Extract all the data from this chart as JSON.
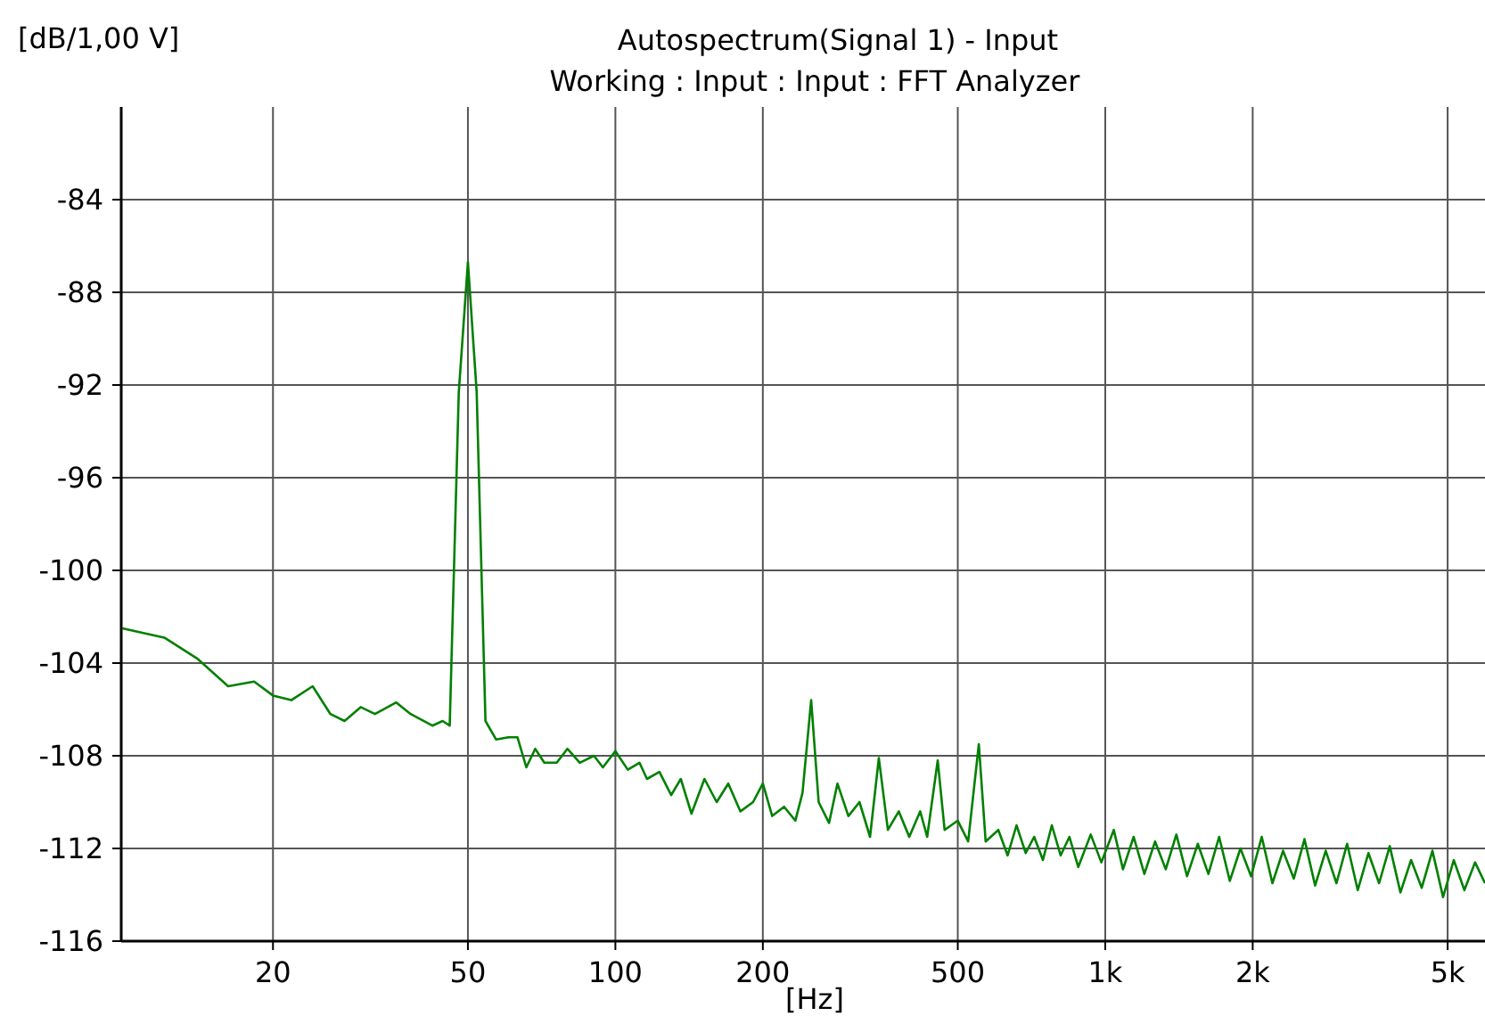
{
  "chart_data": {
    "type": "line",
    "title": "Autospectrum(Signal 1) - Input",
    "subtitle": "Working : Input : Input : FFT Analyzer",
    "xlabel": "[Hz]",
    "ylabel": "[dB/1,00 V]",
    "log": "x",
    "grid": true,
    "marker": "none",
    "line_style": "solid",
    "xlim": [
      9.8,
      5960
    ],
    "ylim": [
      -116,
      -80
    ],
    "xticks": [
      20,
      50,
      100,
      200,
      500,
      {
        "value": 1000,
        "label": "1k"
      },
      {
        "value": 2000,
        "label": "2k"
      },
      {
        "value": 5000,
        "label": "5k"
      }
    ],
    "yticks": [
      -84,
      -88,
      -92,
      -96,
      -100,
      -104,
      -108,
      -112,
      -116
    ],
    "x": [
      9.85,
      12,
      14,
      16.2,
      18.3,
      20,
      21.8,
      24.1,
      26.2,
      28,
      30.2,
      32.3,
      35.7,
      38.2,
      42.3,
      44.4,
      45.9,
      47.9,
      50,
      52.1,
      54.3,
      57.1,
      60.5,
      63.1,
      65.8,
      68.6,
      71.6,
      75.9,
      79.8,
      84.6,
      90.4,
      94.3,
      100,
      106,
      112,
      116,
      123,
      130,
      136,
      143,
      152,
      161,
      170,
      180,
      191,
      200,
      209,
      221,
      233,
      241,
      251,
      260,
      273,
      284,
      299,
      315,
      331,
      345,
      360,
      379,
      398,
      419,
      433,
      455,
      470,
      500,
      525,
      552,
      570,
      605,
      632,
      659,
      688,
      716,
      746,
      778,
      811,
      845,
      881,
      934,
      982,
      1041,
      1087,
      1143,
      1202,
      1264,
      1329,
      1397,
      1469,
      1545,
      1624,
      1708,
      1796,
      1888,
      1985,
      2087,
      2194,
      2307,
      2426,
      2551,
      2682,
      2819,
      2965,
      3117,
      3277,
      3446,
      3623,
      3809,
      4005,
      4211,
      4427,
      4655,
      4894,
      5146,
      5410,
      5688,
      5960
    ],
    "series": [
      {
        "color": "#008000",
        "values": [
          -102.5,
          -102.9,
          -103.8,
          -105.0,
          -104.8,
          -105.4,
          -105.6,
          -105.0,
          -106.2,
          -106.5,
          -105.9,
          -106.2,
          -105.7,
          -106.2,
          -106.7,
          -106.5,
          -106.7,
          -92.3,
          -86.7,
          -92.3,
          -106.5,
          -107.3,
          -107.2,
          -107.2,
          -108.5,
          -107.7,
          -108.3,
          -108.3,
          -107.7,
          -108.3,
          -108.0,
          -108.5,
          -107.8,
          -108.6,
          -108.3,
          -109.0,
          -108.7,
          -109.7,
          -109.0,
          -110.5,
          -109.0,
          -110.0,
          -109.2,
          -110.4,
          -110.0,
          -109.2,
          -110.6,
          -110.2,
          -110.8,
          -109.6,
          -105.6,
          -110.0,
          -110.9,
          -109.2,
          -110.6,
          -110.0,
          -111.5,
          -108.1,
          -111.2,
          -110.4,
          -111.5,
          -110.4,
          -111.5,
          -108.2,
          -111.2,
          -110.8,
          -111.7,
          -107.5,
          -111.7,
          -111.2,
          -112.3,
          -111.0,
          -112.2,
          -111.5,
          -112.5,
          -111.0,
          -112.3,
          -111.5,
          -112.8,
          -111.4,
          -112.6,
          -111.2,
          -112.9,
          -111.5,
          -113.1,
          -111.7,
          -112.9,
          -111.4,
          -113.2,
          -111.8,
          -113.1,
          -111.5,
          -113.4,
          -112.0,
          -113.2,
          -111.5,
          -113.5,
          -112.1,
          -113.3,
          -111.6,
          -113.6,
          -112.1,
          -113.5,
          -111.8,
          -113.8,
          -112.2,
          -113.5,
          -111.9,
          -113.9,
          -112.5,
          -113.7,
          -112.1,
          -114.1,
          -112.5,
          -113.8,
          -112.6,
          -113.5
        ]
      }
    ]
  }
}
